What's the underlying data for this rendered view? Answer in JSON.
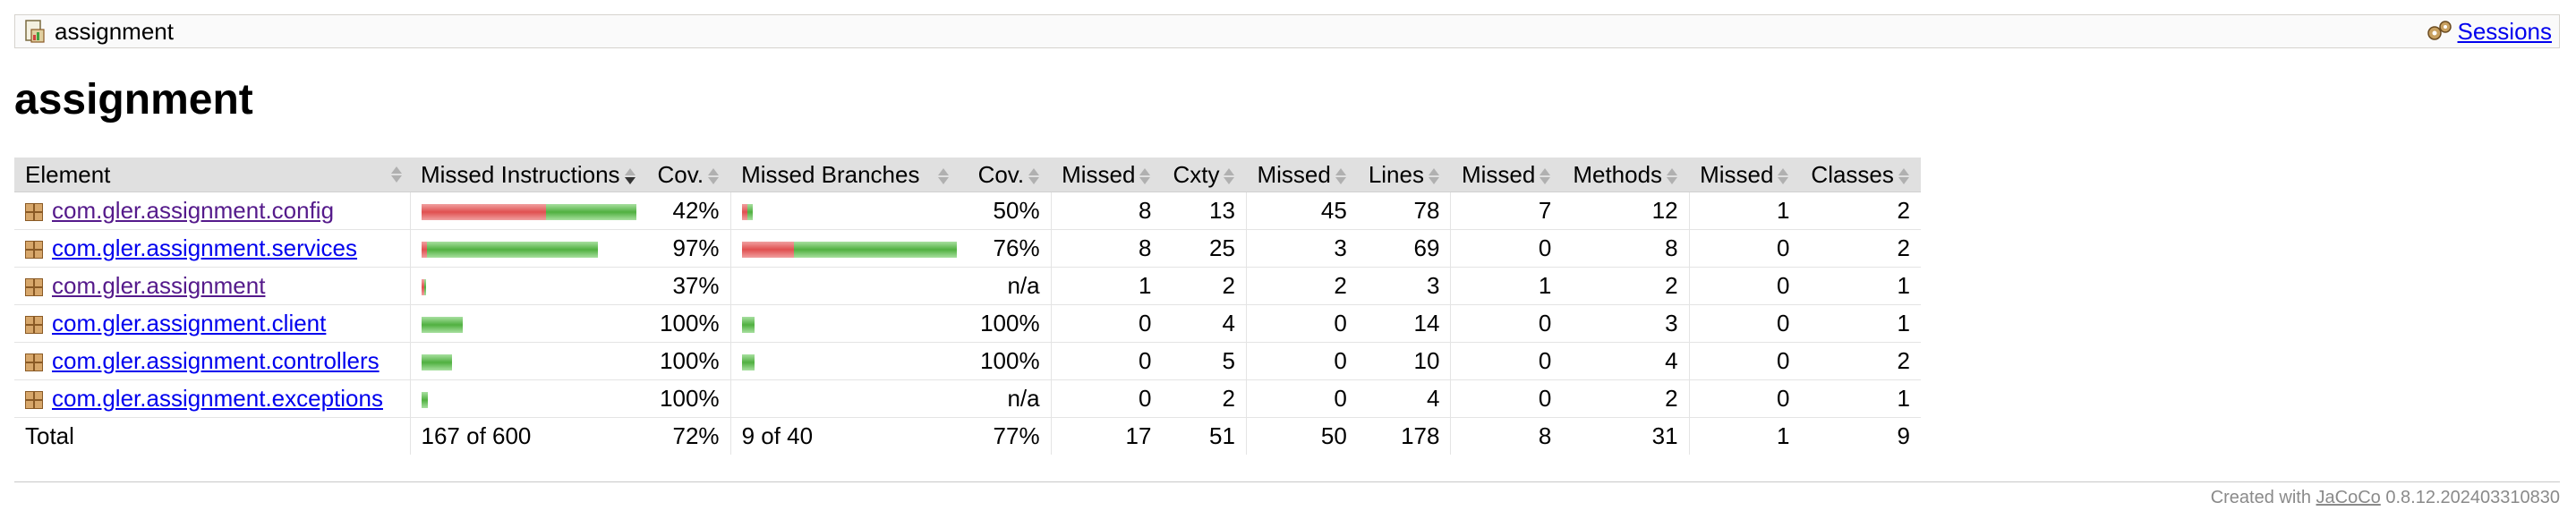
{
  "breadcrumb": {
    "title": "assignment",
    "sessions_label": "Sessions"
  },
  "page": {
    "heading": "assignment"
  },
  "table": {
    "headers": [
      "Element",
      "Missed Instructions",
      "Cov.",
      "Missed Branches",
      "Cov.",
      "Missed",
      "Cxty",
      "Missed",
      "Lines",
      "Missed",
      "Methods",
      "Missed",
      "Classes"
    ],
    "rows": [
      {
        "name": "com.gler.assignment.config",
        "visited": true,
        "instr_missed_frac": 0.58,
        "instr_total_frac": 1.0,
        "instr_cov": "42%",
        "br_missed_frac": 0.5,
        "br_total_frac": 0.05,
        "br_cov": "50%",
        "cx_missed": "8",
        "cxty": "13",
        "lines_missed": "45",
        "lines": "78",
        "m_missed": "7",
        "methods": "12",
        "c_missed": "1",
        "classes": "2"
      },
      {
        "name": "com.gler.assignment.services",
        "visited": false,
        "instr_missed_frac": 0.03,
        "instr_total_frac": 0.82,
        "instr_cov": "97%",
        "br_missed_frac": 0.24,
        "br_total_frac": 1.0,
        "br_cov": "76%",
        "cx_missed": "8",
        "cxty": "25",
        "lines_missed": "3",
        "lines": "69",
        "m_missed": "0",
        "methods": "8",
        "c_missed": "0",
        "classes": "2"
      },
      {
        "name": "com.gler.assignment",
        "visited": true,
        "instr_missed_frac": 0.63,
        "instr_total_frac": 0.02,
        "instr_cov": "37%",
        "br_missed_frac": 0,
        "br_total_frac": 0,
        "br_cov": "n/a",
        "cx_missed": "1",
        "cxty": "2",
        "lines_missed": "2",
        "lines": "3",
        "m_missed": "1",
        "methods": "2",
        "c_missed": "0",
        "classes": "1"
      },
      {
        "name": "com.gler.assignment.client",
        "visited": false,
        "instr_missed_frac": 0,
        "instr_total_frac": 0.19,
        "instr_cov": "100%",
        "br_missed_frac": 0,
        "br_total_frac": 0.06,
        "br_cov": "100%",
        "cx_missed": "0",
        "cxty": "4",
        "lines_missed": "0",
        "lines": "14",
        "m_missed": "0",
        "methods": "3",
        "c_missed": "0",
        "classes": "1"
      },
      {
        "name": "com.gler.assignment.controllers",
        "visited": false,
        "instr_missed_frac": 0,
        "instr_total_frac": 0.14,
        "instr_cov": "100%",
        "br_missed_frac": 0,
        "br_total_frac": 0.06,
        "br_cov": "100%",
        "cx_missed": "0",
        "cxty": "5",
        "lines_missed": "0",
        "lines": "10",
        "m_missed": "0",
        "methods": "4",
        "c_missed": "0",
        "classes": "2"
      },
      {
        "name": "com.gler.assignment.exceptions",
        "visited": false,
        "instr_missed_frac": 0,
        "instr_total_frac": 0.03,
        "instr_cov": "100%",
        "br_missed_frac": 0,
        "br_total_frac": 0,
        "br_cov": "n/a",
        "cx_missed": "0",
        "cxty": "2",
        "lines_missed": "0",
        "lines": "4",
        "m_missed": "0",
        "methods": "2",
        "c_missed": "0",
        "classes": "1"
      }
    ],
    "total": {
      "label": "Total",
      "instr": "167 of 600",
      "instr_cov": "72%",
      "br": "9 of 40",
      "br_cov": "77%",
      "cx_missed": "17",
      "cxty": "51",
      "lines_missed": "50",
      "lines": "178",
      "m_missed": "8",
      "methods": "31",
      "c_missed": "1",
      "classes": "9"
    }
  },
  "footer": {
    "prefix": "Created with ",
    "link": "JaCoCo",
    "version": " 0.8.12.202403310830"
  },
  "colors": {
    "missed": "#e05050",
    "covered": "#50b040"
  }
}
